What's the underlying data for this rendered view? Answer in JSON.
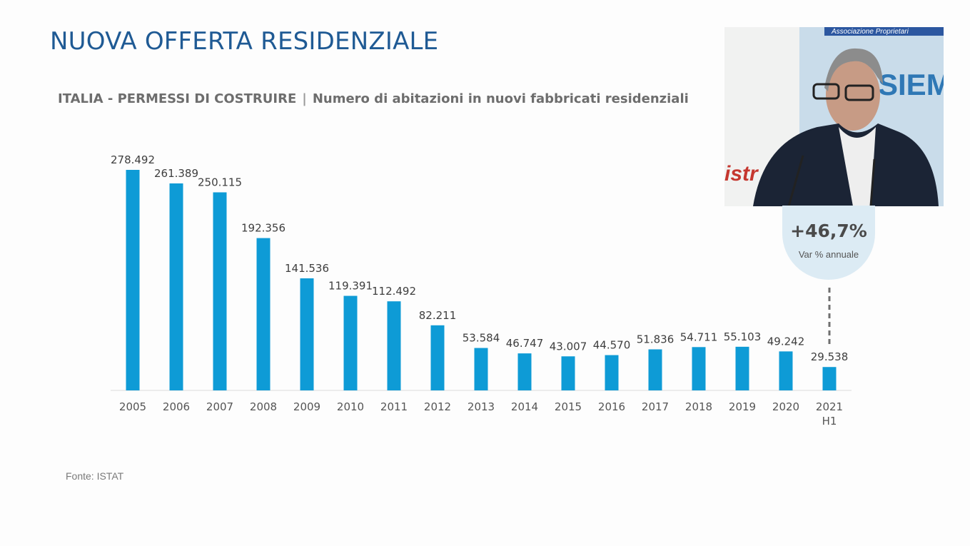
{
  "slide": {
    "title": "NUOVA OFFERTA RESIDENZIALE",
    "subtitle_left": "ITALIA - PERMESSI DI COSTRUIRE",
    "subtitle_sep": "|",
    "subtitle_right": "Numero di abitazioni in nuovi fabbricati residenziali",
    "source": "Fonte: ISTAT"
  },
  "highlight": {
    "value": "+46,7%",
    "label": "Var % annuale"
  },
  "webcam": {
    "banner_text": "Associazione Proprietari",
    "sign_text": "SIEME ER LA CA",
    "side_text": "istr"
  },
  "colors": {
    "bar": "#0e9bd6",
    "title": "#1f5a94",
    "highlight_bg": "#dcebf4"
  },
  "chart_data": {
    "type": "bar",
    "categories": [
      "2005",
      "2006",
      "2007",
      "2008",
      "2009",
      "2010",
      "2011",
      "2012",
      "2013",
      "2014",
      "2015",
      "2016",
      "2017",
      "2018",
      "2019",
      "2020",
      "2021 H1"
    ],
    "values": [
      278492,
      261389,
      250115,
      192356,
      141536,
      119391,
      112492,
      82211,
      53584,
      46747,
      43007,
      44570,
      51836,
      54711,
      55103,
      49242,
      29538
    ],
    "value_labels": [
      "278.492",
      "261.389",
      "250.115",
      "192.356",
      "141.536",
      "119.391",
      "112.492",
      "82.211",
      "53.584",
      "46.747",
      "43.007",
      "44.570",
      "51.836",
      "54.711",
      "55.103",
      "49.242",
      "29.538"
    ],
    "title": "ITALIA - PERMESSI DI COSTRUIRE | Numero di abitazioni in nuovi fabbricati residenziali",
    "xlabel": "",
    "ylabel": "",
    "ylim": [
      0,
      300000
    ],
    "grid": false,
    "legend": "none"
  }
}
